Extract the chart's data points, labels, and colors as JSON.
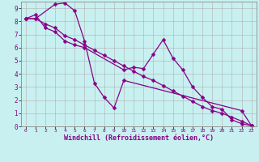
{
  "background_color": "#c8f0f0",
  "grid_color": "#b0b0b0",
  "line_color": "#880088",
  "markersize": 2.5,
  "linewidth": 0.9,
  "xlim": [
    -0.5,
    23.5
  ],
  "ylim": [
    0,
    9.5
  ],
  "xlabel": "Windchill (Refroidissement éolien,°C)",
  "xlabel_fontsize": 6.0,
  "xtick_fontsize": 4.5,
  "ytick_fontsize": 5.5,
  "line1_x": [
    0,
    1,
    2,
    3,
    4,
    5,
    6,
    10,
    11,
    12,
    13,
    14,
    15,
    16,
    17,
    18,
    19,
    20,
    21,
    22,
    23
  ],
  "line1_y": [
    8.2,
    8.5,
    7.5,
    7.2,
    6.5,
    6.2,
    6.0,
    4.3,
    4.5,
    4.4,
    5.5,
    6.6,
    5.2,
    4.3,
    3.0,
    2.2,
    1.5,
    1.3,
    0.5,
    0.2,
    0.05
  ],
  "line2_x": [
    0,
    1,
    3,
    4,
    5,
    6,
    7,
    8,
    9,
    10,
    22,
    23
  ],
  "line2_y": [
    8.2,
    8.2,
    9.3,
    9.4,
    8.8,
    6.5,
    3.3,
    2.2,
    1.4,
    3.5,
    1.2,
    0.05
  ],
  "line3_x": [
    0,
    1,
    2,
    3,
    4,
    5,
    6,
    7,
    8,
    9,
    10,
    11,
    12,
    13,
    14,
    15,
    16,
    17,
    18,
    19,
    20,
    21,
    22,
    23
  ],
  "line3_y": [
    8.2,
    8.2,
    7.8,
    7.5,
    6.9,
    6.6,
    6.2,
    5.8,
    5.4,
    5.0,
    4.6,
    4.2,
    3.8,
    3.5,
    3.1,
    2.7,
    2.3,
    1.9,
    1.5,
    1.2,
    1.0,
    0.7,
    0.4,
    0.05
  ]
}
